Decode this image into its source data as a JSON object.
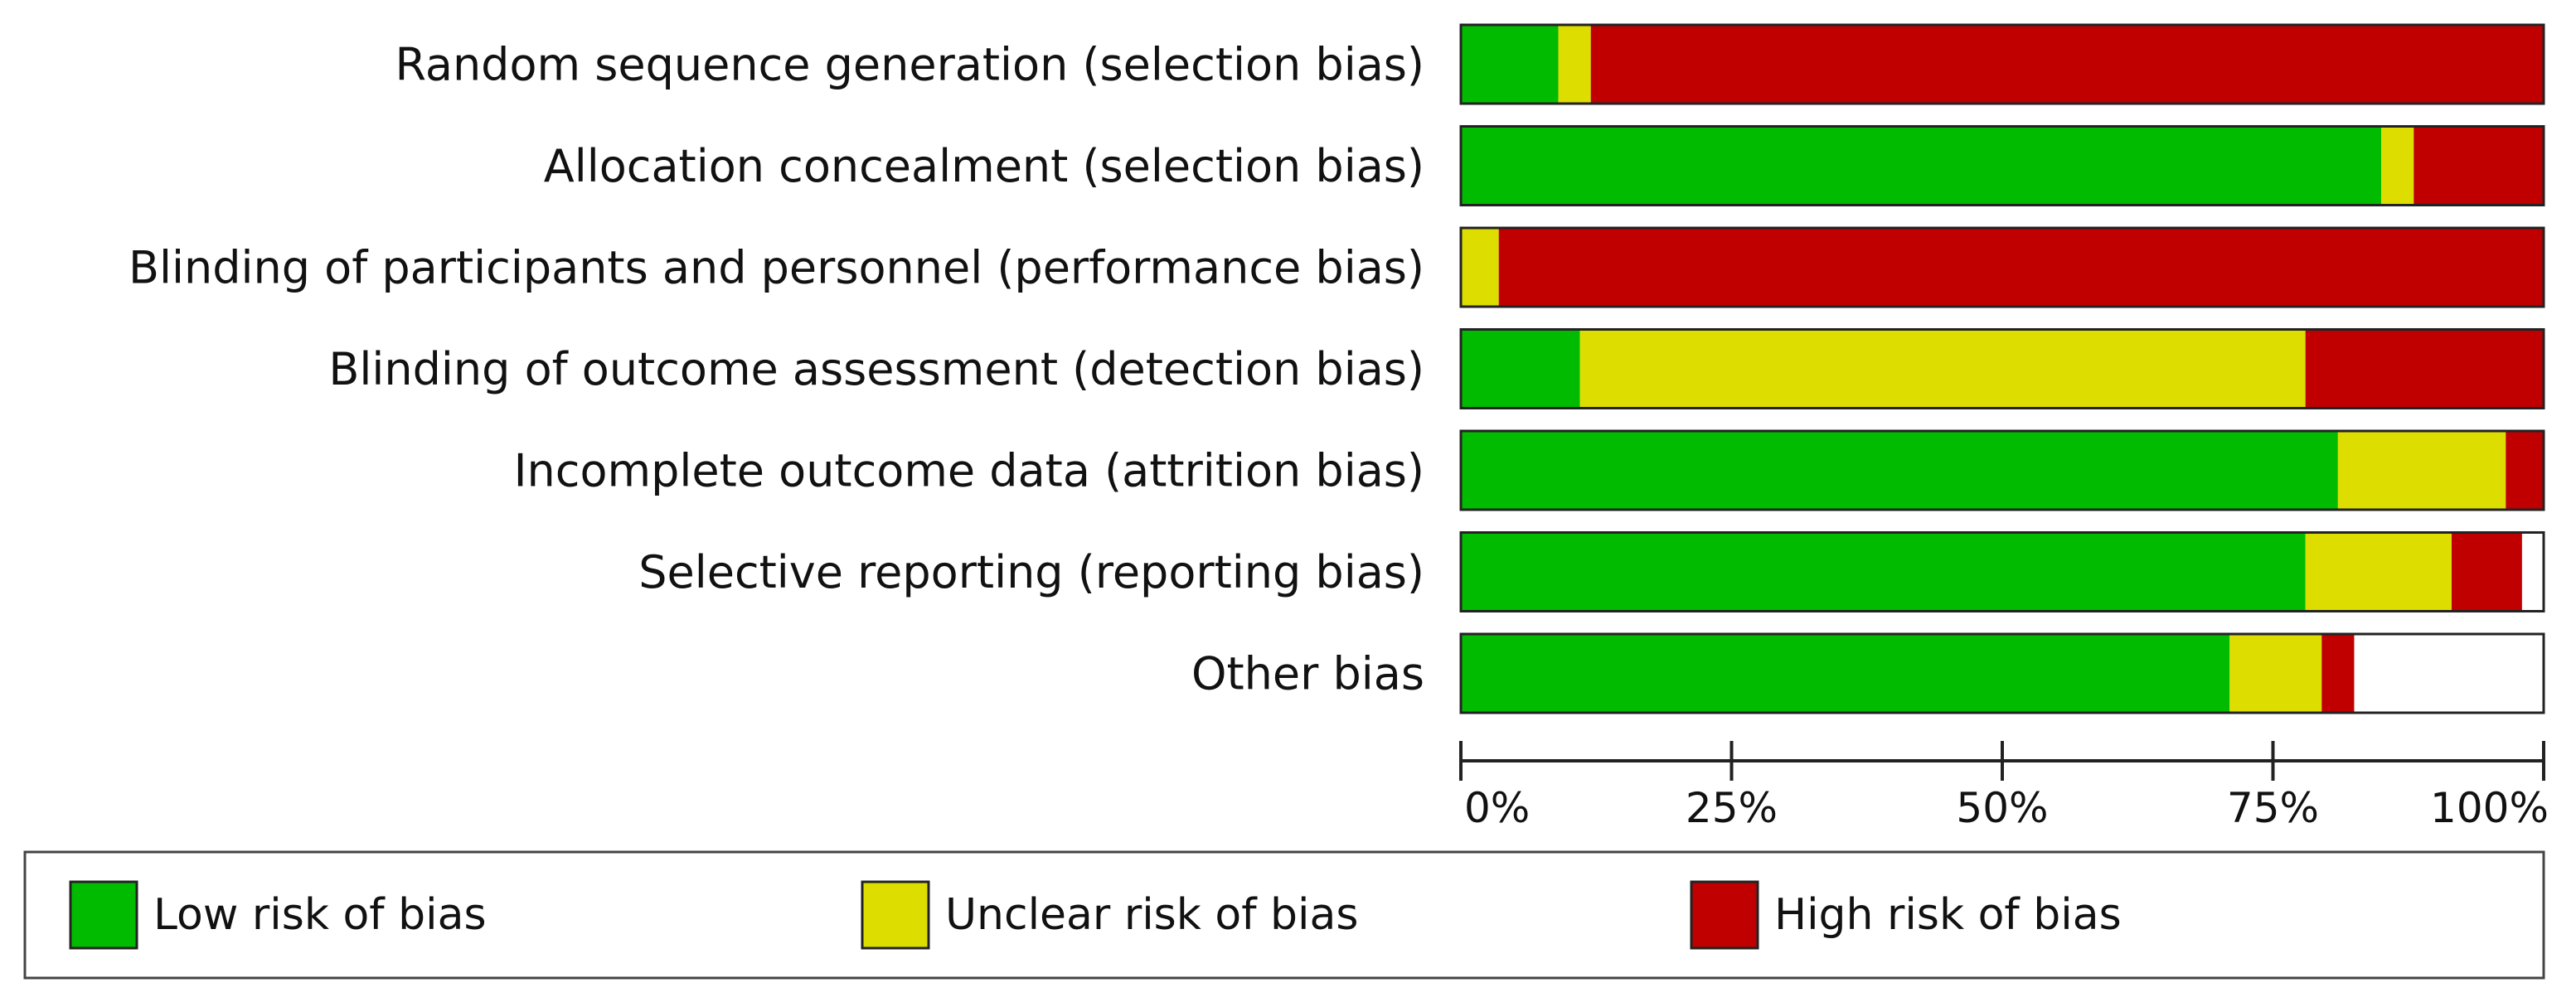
{
  "chart_data": {
    "type": "bar",
    "stacked": true,
    "orientation": "horizontal",
    "categories": [
      "Random sequence generation (selection bias)",
      "Allocation concealment (selection bias)",
      "Blinding of participants and personnel (performance bias)",
      "Blinding of outcome assessment (detection bias)",
      "Incomplete outcome data (attrition bias)",
      "Selective reporting (reporting bias)",
      "Other bias"
    ],
    "series": [
      {
        "name": "Low risk of bias",
        "color": "#00bb00",
        "values": [
          9,
          85,
          0,
          11,
          81,
          78,
          71
        ]
      },
      {
        "name": "Unclear risk of bias",
        "color": "#dddd00",
        "values": [
          3,
          3,
          3.5,
          67,
          15.5,
          13.5,
          8.5
        ]
      },
      {
        "name": "High risk of bias",
        "color": "#c00000",
        "values": [
          88,
          12,
          96.5,
          22,
          3.5,
          6.5,
          3
        ]
      }
    ],
    "x_ticks": [
      "0%",
      "25%",
      "50%",
      "75%",
      "100%"
    ],
    "xlim": [
      0,
      100
    ],
    "legend_position": "bottom",
    "grid": false
  }
}
